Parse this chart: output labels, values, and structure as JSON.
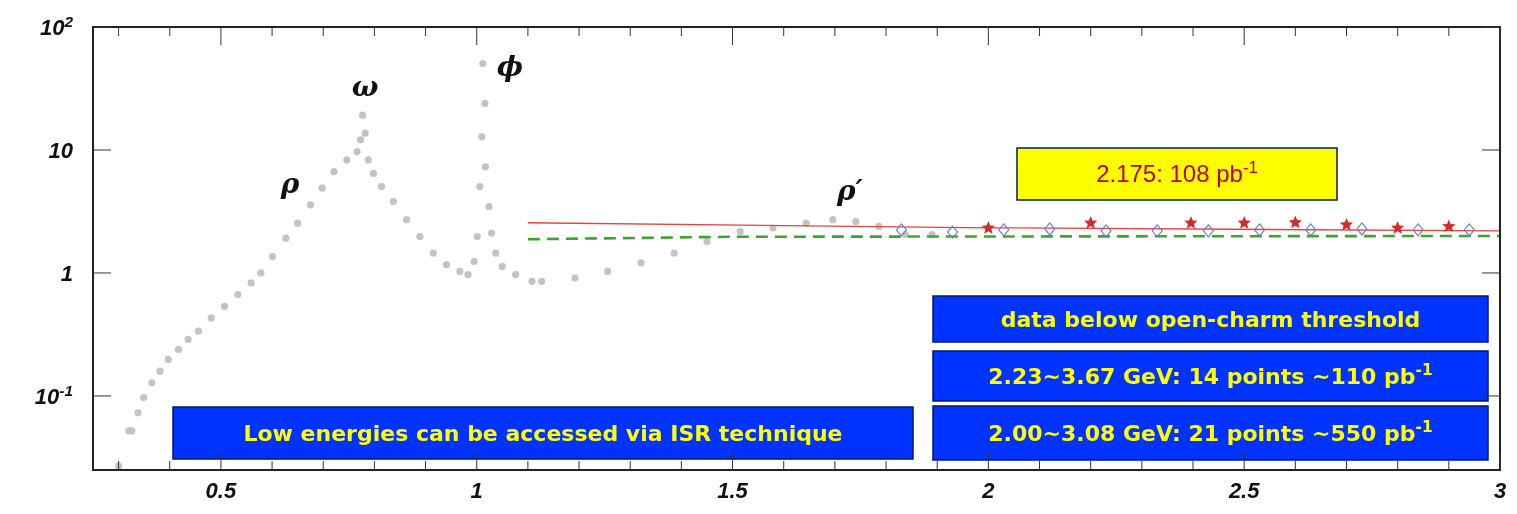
{
  "chart_data": {
    "type": "scatter",
    "log": "y",
    "xlim": [
      0.25,
      3
    ],
    "xticks": [
      {
        "value": 0.3,
        "label": null
      },
      {
        "value": 0.4,
        "label": null
      },
      0.5,
      {
        "value": 0.6,
        "label": null
      },
      {
        "value": 0.7,
        "label": null
      },
      {
        "value": 0.8,
        "label": null
      },
      {
        "value": 0.9,
        "label": null
      },
      1,
      {
        "value": 1.1,
        "label": null
      },
      {
        "value": 1.2,
        "label": null
      },
      {
        "value": 1.3,
        "label": null
      },
      {
        "value": 1.4,
        "label": null
      },
      1.5,
      {
        "value": 1.6,
        "label": null
      },
      {
        "value": 1.7,
        "label": null
      },
      {
        "value": 1.8,
        "label": null
      },
      {
        "value": 1.9,
        "label": null
      },
      2,
      {
        "value": 2.1,
        "label": null
      },
      {
        "value": 2.2,
        "label": null
      },
      {
        "value": 2.3,
        "label": null
      },
      {
        "value": 2.4,
        "label": null
      },
      2.5,
      {
        "value": 2.6,
        "label": null
      },
      {
        "value": 2.7,
        "label": null
      },
      {
        "value": 2.8,
        "label": null
      },
      {
        "value": 2.9,
        "label": null
      },
      3
    ],
    "ylim": [
      0.025,
      100
    ],
    "yticks": [
      {
        "value": 0.1,
        "label": "10$^{-1}$"
      },
      1,
      10,
      {
        "value": 100,
        "label": "10$^{2}$"
      }
    ],
    "series": [
      {
        "marker": "circle",
        "color": "#c4c4be",
        "x": [
          0.3,
          0.32,
          0.326,
          0.338,
          0.349,
          0.365,
          0.381,
          0.397,
          0.417,
          0.436,
          0.456,
          0.481,
          0.507,
          0.533,
          0.559,
          0.578,
          0.601,
          0.627,
          0.65,
          0.675,
          0.698,
          0.721,
          0.746,
          0.766,
          0.773,
          0.777,
          0.782,
          0.788,
          0.798,
          0.814,
          0.837,
          0.863,
          0.889,
          0.915,
          0.941,
          0.967,
          0.983,
          0.995,
          1.001,
          1.006,
          1.01,
          1.012,
          1.016,
          1.017,
          1.024,
          1.029,
          1.037,
          1.05,
          1.076,
          1.108,
          1.127,
          1.192,
          1.256,
          1.321,
          1.386,
          1.45,
          1.515,
          1.579,
          1.644,
          1.696,
          1.741,
          1.786,
          1.838,
          1.89
        ],
        "values": [
          0.027,
          0.052,
          0.052,
          0.073,
          0.097,
          0.128,
          0.159,
          0.198,
          0.239,
          0.288,
          0.336,
          0.431,
          0.536,
          0.667,
          0.83,
          1.0,
          1.36,
          1.92,
          2.54,
          3.58,
          4.89,
          6.67,
          8.3,
          9.7,
          12.1,
          19.2,
          13.7,
          8.3,
          6.47,
          5.04,
          3.81,
          2.71,
          1.98,
          1.45,
          1.17,
          1.03,
          0.97,
          1.24,
          1.98,
          5.04,
          12.8,
          50.5,
          23.9,
          7.3,
          3.47,
          2.11,
          1.45,
          1.13,
          0.97,
          0.855,
          0.855,
          0.91,
          1.03,
          1.21,
          1.45,
          1.8,
          2.17,
          2.32,
          2.54,
          2.71,
          2.62,
          2.39,
          2.05,
          2.05
        ]
      },
      {
        "type": "line",
        "line_style": "solid",
        "color": "#e8413c",
        "x": [
          1.1,
          2.0,
          3.0
        ],
        "values": [
          2.56,
          2.33,
          2.2
        ]
      },
      {
        "type": "line",
        "line_style": "dashed",
        "color": "#3ca52e",
        "x": [
          1.1,
          1.5,
          3.0
        ],
        "values": [
          1.88,
          1.97,
          2.0
        ]
      },
      {
        "marker": "diamond",
        "color": "#6a82c8",
        "x": [
          1.83,
          1.93,
          2.03,
          2.12,
          2.23,
          2.33,
          2.43,
          2.53,
          2.63,
          2.73,
          2.84,
          2.94
        ],
        "values": [
          2.24,
          2.15,
          2.24,
          2.28,
          2.2,
          2.2,
          2.2,
          2.24,
          2.24,
          2.28,
          2.24,
          2.24
        ]
      },
      {
        "marker": "star",
        "color": "#d42a2a",
        "x": [
          2.0,
          2.2,
          2.396,
          2.5,
          2.6,
          2.7,
          2.8,
          2.9
        ],
        "values": [
          2.32,
          2.55,
          2.55,
          2.55,
          2.57,
          2.46,
          2.32,
          2.39
        ]
      }
    ],
    "annotations": [
      "ρ",
      "ω",
      "ϕ",
      "ρ′",
      "2.175: 108 pb$^{-1}$",
      "data below open-charm threshold",
      "2.23~3.67  GeV: 14 points ~110 pb$^{-1}$",
      "2.00~3.08  GeV: 21 points ~550 pb$^{-1}$",
      "Low energies can be accessed via ISR technique"
    ]
  }
}
